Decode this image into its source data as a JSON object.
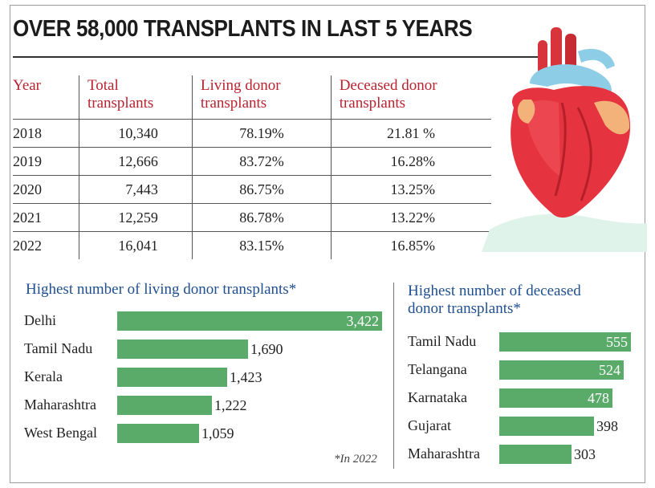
{
  "title": "OVER 58,000 TRANSPLANTS IN LAST 5 YEARS",
  "table": {
    "headers": [
      "Year",
      "Total transplants",
      "Living donor transplants",
      "Deceased donor transplants"
    ],
    "header_lines": [
      [
        "Year"
      ],
      [
        "Total",
        "transplants"
      ],
      [
        "Living donor",
        "transplants"
      ],
      [
        "Deceased donor",
        "transplants"
      ]
    ],
    "rows": [
      [
        "2018",
        "10,340",
        "78.19%",
        "21.81 %"
      ],
      [
        "2019",
        "12,666",
        "83.72%",
        "16.28%"
      ],
      [
        "2020",
        "7,443",
        "86.75%",
        "13.25%"
      ],
      [
        "2021",
        "12,259",
        "86.78%",
        "13.22%"
      ],
      [
        "2022",
        "16,041",
        "83.15%",
        "16.85%"
      ]
    ]
  },
  "living_section_title": "Highest number of living donor transplants*",
  "deceased_section_title_lines": [
    "Highest number of deceased",
    "donor transplants*"
  ],
  "footnote": "*In 2022",
  "colors": {
    "bar": "#5aaa6a",
    "header_red": "#b8232f",
    "section_blue": "#1f4f8f"
  },
  "chart_data": [
    {
      "type": "bar",
      "orientation": "horizontal",
      "title": "Highest number of living donor transplants*",
      "categories": [
        "Delhi",
        "Tamil Nadu",
        "Kerala",
        "Maharashtra",
        "West Bengal"
      ],
      "values": [
        3422,
        1690,
        1423,
        1222,
        1059
      ],
      "value_labels": [
        "3,422",
        "1,690",
        "1,423",
        "1,222",
        "1,059"
      ],
      "inside_labels": [
        true,
        false,
        false,
        false,
        false
      ]
    },
    {
      "type": "bar",
      "orientation": "horizontal",
      "title": "Highest number of deceased donor transplants*",
      "categories": [
        "Tamil Nadu",
        "Telangana",
        "Karnataka",
        "Gujarat",
        "Maharashtra"
      ],
      "values": [
        555,
        524,
        478,
        398,
        303
      ],
      "value_labels": [
        "555",
        "524",
        "478",
        "398",
        "303"
      ],
      "inside_labels": [
        true,
        true,
        true,
        false,
        false
      ]
    }
  ]
}
